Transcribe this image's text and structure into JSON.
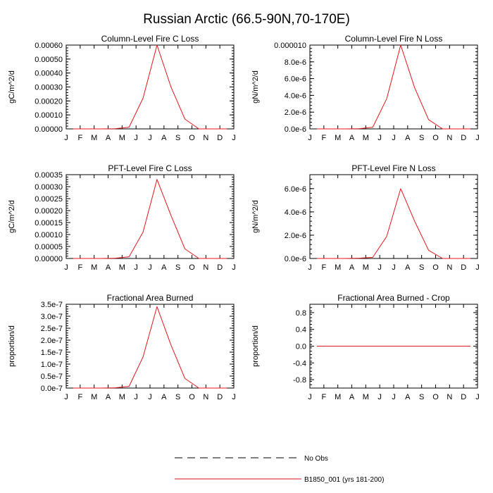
{
  "figure": {
    "title": "Russian Arctic (66.5-90N,70-170E)"
  },
  "legend": {
    "entries": [
      {
        "label": "No Obs",
        "style": "dashed",
        "color": "#000000"
      },
      {
        "label": "B1850_001 (yrs 181-200)",
        "style": "solid",
        "color": "#e8141b"
      }
    ]
  },
  "chart_data": [
    {
      "type": "line",
      "title": "Column-Level Fire C Loss",
      "ylabel": "gC/m^2/d",
      "xlabel": "",
      "categories": [
        "J",
        "F",
        "M",
        "A",
        "M",
        "J",
        "J",
        "A",
        "S",
        "O",
        "N",
        "D",
        "J"
      ],
      "ylim": [
        0,
        0.0006
      ],
      "yticks": [
        0,
        0.0001,
        0.0002,
        0.0003,
        0.0004,
        0.0005,
        0.0006
      ],
      "yticklabels": [
        "0.00000",
        "0.00010",
        "0.00020",
        "0.00030",
        "0.00040",
        "0.00050",
        "0.00060"
      ],
      "series": [
        {
          "name": "B1850_001 (yrs 181-200)",
          "color": "#e8141b",
          "x": [
            0.5,
            1.5,
            2.5,
            3.5,
            4.5,
            5.5,
            6.5,
            7.5,
            8.5,
            9.5,
            10.5,
            11.5
          ],
          "values": [
            0,
            0,
            0,
            1e-06,
            1.2e-05,
            0.00022,
            0.0006,
            0.0003,
            7e-05,
            0,
            0,
            0
          ]
        }
      ]
    },
    {
      "type": "line",
      "title": "Column-Level Fire N Loss",
      "ylabel": "gN/m^2/d",
      "xlabel": "",
      "categories": [
        "J",
        "F",
        "M",
        "A",
        "M",
        "J",
        "J",
        "A",
        "S",
        "O",
        "N",
        "D",
        "J"
      ],
      "ylim": [
        0,
        1e-05
      ],
      "yticks": [
        0,
        2e-06,
        4e-06,
        6e-06,
        8e-06,
        1e-05
      ],
      "yticklabels": [
        "0.0e-6",
        "2.0e-6",
        "4.0e-6",
        "6.0e-6",
        "8.0e-6",
        "0.000010"
      ],
      "series": [
        {
          "name": "B1850_001 (yrs 181-200)",
          "color": "#e8141b",
          "x": [
            0.5,
            1.5,
            2.5,
            3.5,
            4.5,
            5.5,
            6.5,
            7.5,
            8.5,
            9.5,
            10.5,
            11.5
          ],
          "values": [
            0,
            0,
            0,
            2e-08,
            2e-07,
            3.6e-06,
            1e-05,
            4.9e-06,
            1.1e-06,
            0,
            0,
            0
          ]
        }
      ]
    },
    {
      "type": "line",
      "title": "PFT-Level Fire C Loss",
      "ylabel": "gC/m^2/d",
      "xlabel": "",
      "categories": [
        "J",
        "F",
        "M",
        "A",
        "M",
        "J",
        "J",
        "A",
        "S",
        "O",
        "N",
        "D",
        "J"
      ],
      "ylim": [
        0,
        0.00035
      ],
      "yticks": [
        0,
        5e-05,
        0.0001,
        0.00015,
        0.0002,
        0.00025,
        0.0003,
        0.00035
      ],
      "yticklabels": [
        "0.00000",
        "0.00005",
        "0.00010",
        "0.00015",
        "0.00020",
        "0.00025",
        "0.00030",
        "0.00035"
      ],
      "series": [
        {
          "name": "B1850_001 (yrs 181-200)",
          "color": "#e8141b",
          "x": [
            0.5,
            1.5,
            2.5,
            3.5,
            4.5,
            5.5,
            6.5,
            7.5,
            8.5,
            9.5,
            10.5,
            11.5
          ],
          "values": [
            0,
            0,
            0,
            1e-06,
            7e-06,
            0.00011,
            0.00033,
            0.00018,
            4e-05,
            0,
            0,
            0
          ]
        }
      ]
    },
    {
      "type": "line",
      "title": "PFT-Level Fire N Loss",
      "ylabel": "gN/m^2/d",
      "xlabel": "",
      "categories": [
        "J",
        "F",
        "M",
        "A",
        "M",
        "J",
        "J",
        "A",
        "S",
        "O",
        "N",
        "D",
        "J"
      ],
      "ylim": [
        0,
        7.2e-06
      ],
      "yticks": [
        0,
        2e-06,
        4e-06,
        6e-06
      ],
      "yticklabels": [
        "0.0e-6",
        "2.0e-6",
        "4.0e-6",
        "6.0e-6"
      ],
      "series": [
        {
          "name": "B1850_001 (yrs 181-200)",
          "color": "#e8141b",
          "x": [
            0.5,
            1.5,
            2.5,
            3.5,
            4.5,
            5.5,
            6.5,
            7.5,
            8.5,
            9.5,
            10.5,
            11.5
          ],
          "values": [
            0,
            0,
            0,
            2e-08,
            1e-07,
            1.9e-06,
            6e-06,
            3.2e-06,
            7e-07,
            0,
            0,
            0
          ]
        }
      ]
    },
    {
      "type": "line",
      "title": "Fractional Area Burned",
      "ylabel": "proportion/d",
      "xlabel": "",
      "categories": [
        "J",
        "F",
        "M",
        "A",
        "M",
        "J",
        "J",
        "A",
        "S",
        "O",
        "N",
        "D",
        "J"
      ],
      "ylim": [
        0,
        3.5e-07
      ],
      "yticks": [
        0,
        5e-08,
        1e-07,
        1.5e-07,
        2e-07,
        2.5e-07,
        3e-07,
        3.5e-07
      ],
      "yticklabels": [
        "0.0e-7",
        "0.5e-7",
        "1.0e-7",
        "1.5e-7",
        "2.0e-7",
        "2.5e-7",
        "3.0e-7",
        "3.5e-7"
      ],
      "series": [
        {
          "name": "B1850_001 (yrs 181-200)",
          "color": "#e8141b",
          "x": [
            0.5,
            1.5,
            2.5,
            3.5,
            4.5,
            5.5,
            6.5,
            7.5,
            8.5,
            9.5,
            10.5,
            11.5
          ],
          "values": [
            0,
            0,
            0,
            1e-09,
            7e-09,
            1.3e-07,
            3.4e-07,
            1.8e-07,
            4e-08,
            0,
            0,
            0
          ]
        }
      ]
    },
    {
      "type": "line",
      "title": "Fractional Area Burned - Crop",
      "ylabel": "proportion/d",
      "xlabel": "",
      "categories": [
        "J",
        "F",
        "M",
        "A",
        "M",
        "J",
        "J",
        "A",
        "S",
        "O",
        "N",
        "D",
        "J"
      ],
      "ylim": [
        -1.0,
        1.0
      ],
      "yticks": [
        -0.8,
        -0.4,
        0,
        0.4,
        0.8
      ],
      "yticklabels": [
        "-0.8",
        "-0.4",
        "0.0",
        "0.4",
        "0.8"
      ],
      "series": [
        {
          "name": "B1850_001 (yrs 181-200)",
          "color": "#e8141b",
          "x": [
            0.5,
            1.5,
            2.5,
            3.5,
            4.5,
            5.5,
            6.5,
            7.5,
            8.5,
            9.5,
            10.5,
            11.5
          ],
          "values": [
            0,
            0,
            0,
            0,
            0,
            0,
            0,
            0,
            0,
            0,
            0,
            0
          ]
        }
      ]
    }
  ]
}
